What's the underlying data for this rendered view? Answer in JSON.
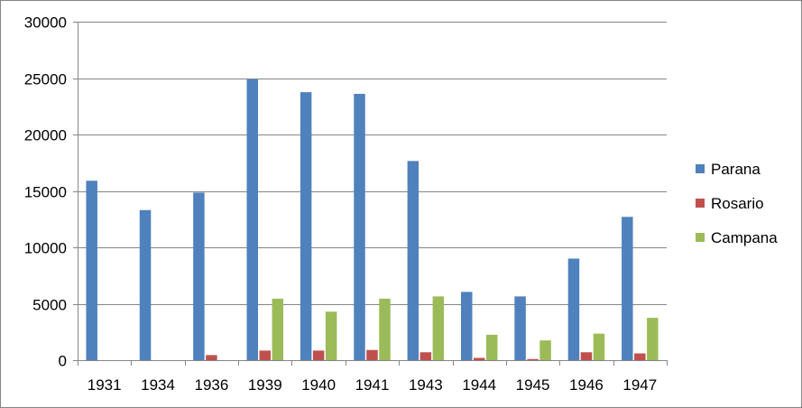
{
  "chart_data": {
    "type": "bar",
    "title": "",
    "xlabel": "",
    "ylabel": "",
    "categories": [
      "1931",
      "1934",
      "1936",
      "1939",
      "1940",
      "1941",
      "1943",
      "1944",
      "1945",
      "1946",
      "1947"
    ],
    "series": [
      {
        "name": "Parana",
        "color": "#4f81bd",
        "values": [
          15900,
          13300,
          14850,
          24900,
          23750,
          23600,
          17650,
          6050,
          5650,
          9000,
          12700
        ]
      },
      {
        "name": "Rosario",
        "color": "#c0504d",
        "values": [
          0,
          0,
          450,
          850,
          850,
          900,
          700,
          200,
          100,
          700,
          600
        ]
      },
      {
        "name": "Campana",
        "color": "#9bbb59",
        "values": [
          0,
          0,
          0,
          5450,
          4300,
          5450,
          5650,
          2250,
          1750,
          2350,
          3750
        ]
      }
    ],
    "ylim": [
      0,
      30000
    ],
    "yticks": [
      0,
      5000,
      10000,
      15000,
      20000,
      25000,
      30000
    ],
    "grid": true,
    "legend_position": "right"
  }
}
